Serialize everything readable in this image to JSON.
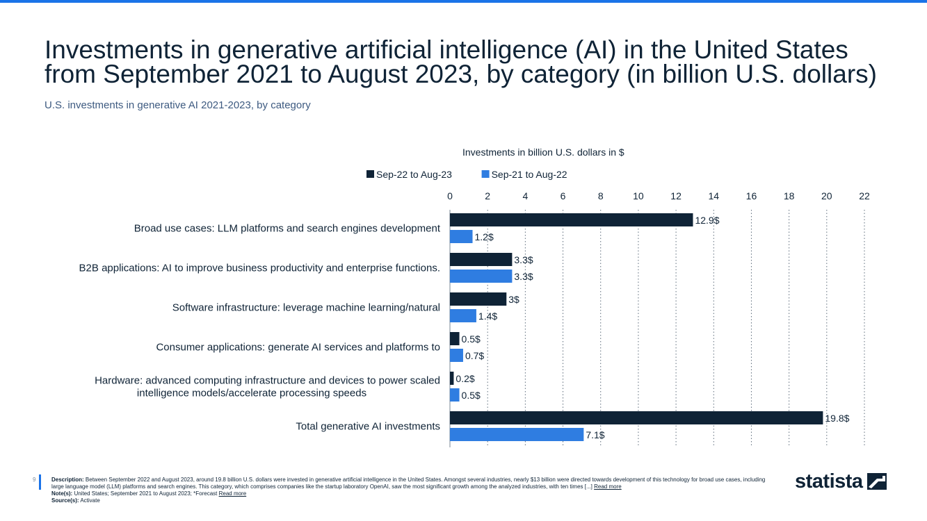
{
  "header": {
    "title_line1": "Investments in generative artificial intelligence (AI) in the United States",
    "title_line2": "from September 2021 to August 2023, by category (in billion U.S. dollars)",
    "subtitle": "U.S. investments in generative AI 2021-2023, by category"
  },
  "chart_data": {
    "type": "bar",
    "orientation": "horizontal",
    "title": "Investments in billion U.S. dollars in $",
    "xlim": [
      0,
      22
    ],
    "ticks": [
      "0",
      "2",
      "4",
      "6",
      "8",
      "10",
      "12",
      "14",
      "16",
      "18",
      "20",
      "22"
    ],
    "grid": true,
    "legend_position": "top",
    "categories": [
      [
        "Broad use cases: LLM platforms and search engines development"
      ],
      [
        "B2B applications: AI to improve business productivity and enterprise functions."
      ],
      [
        "Software infrastructure: leverage machine learning/natural"
      ],
      [
        "Consumer applications: generate AI services and platforms to"
      ],
      [
        "Hardware: advanced computing infrastructure and devices to power scaled",
        "intelligence models/accelerate processing speeds"
      ],
      [
        "Total generative AI investments"
      ]
    ],
    "series": [
      {
        "name": "Sep-22 to Aug-23",
        "color": "#0f2336",
        "values": [
          12.9,
          3.3,
          3,
          0.5,
          0.2,
          19.8
        ],
        "labels": [
          "12.9$",
          "3.3$",
          "3$",
          "0.5$",
          "0.2$",
          "19.8$"
        ]
      },
      {
        "name": "Sep-21 to Aug-22",
        "color": "#2f7de1",
        "values": [
          1.2,
          3.3,
          1.4,
          0.7,
          0.5,
          7.1
        ],
        "labels": [
          "1.2$",
          "3.3$",
          "1.4$",
          "0.7$",
          "0.5$",
          "7.1$"
        ]
      }
    ]
  },
  "footer": {
    "page_number": "9",
    "description_label": "Description:",
    "description_text": "Between September 2022 and August 2023, around 19.8 billion U.S. dollars were invested in generative artificial intelligence in the United States. Amongst several industries, nearly $13 billion were directed towards development of this technology for broad use cases, including large language model (LLM) platforms and search engines. This category, which comprises companies like the startup laboratory OpenAI, saw the most significant growth among the analyzed industries, with ten times [...]",
    "read_more_1": "Read more",
    "notes_label": "Note(s):",
    "notes_text": "United States; September 2021 to August 2023; *Forecast",
    "read_more_2": "Read more",
    "source_label": "Source(s):",
    "source_text": "Activate"
  },
  "brand": {
    "logo_text": "statista",
    "logo_icon": "statista-logo-icon",
    "accent_color": "#1a73e8"
  }
}
